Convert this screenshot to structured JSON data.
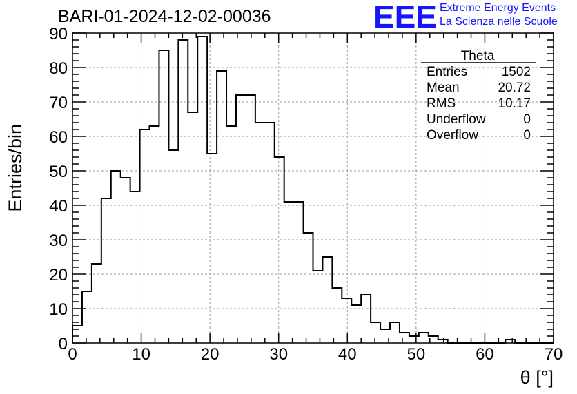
{
  "header": {
    "title": "BARI-01-2024-12-02-00036",
    "logo_text": "EEE",
    "logo_line1": "Extreme Energy Events",
    "logo_line2": "La Scienza nelle Scuole",
    "logo_color": "#1515ff"
  },
  "stats_box": {
    "title": "Theta",
    "rows": [
      {
        "label": "Entries",
        "value": "1502"
      },
      {
        "label": "Mean",
        "value": "20.72"
      },
      {
        "label": "RMS",
        "value": "10.17"
      },
      {
        "label": "Underflow",
        "value": "0"
      },
      {
        "label": "Overflow",
        "value": "0"
      }
    ]
  },
  "chart_data": {
    "type": "bar",
    "histogram": true,
    "xlabel": "θ [°]",
    "ylabel": "Entries/bin",
    "xlim": [
      0,
      70
    ],
    "ylim": [
      0,
      90
    ],
    "bin_width": 1.4,
    "x_ticks": [
      0,
      10,
      20,
      30,
      40,
      50,
      60,
      70
    ],
    "y_ticks": [
      0,
      10,
      20,
      30,
      40,
      50,
      60,
      70,
      80,
      90
    ],
    "grid": true,
    "values": [
      5,
      15,
      23,
      42,
      50,
      48,
      44,
      62,
      63,
      85,
      56,
      88,
      67,
      89,
      55,
      79,
      63,
      72,
      72,
      64,
      64,
      54,
      41,
      41,
      32,
      21,
      25,
      16,
      13,
      11,
      14,
      6,
      4,
      6,
      3,
      2,
      3,
      2,
      1,
      0,
      0,
      0,
      0,
      0,
      0,
      1,
      0,
      0,
      0,
      0
    ]
  }
}
